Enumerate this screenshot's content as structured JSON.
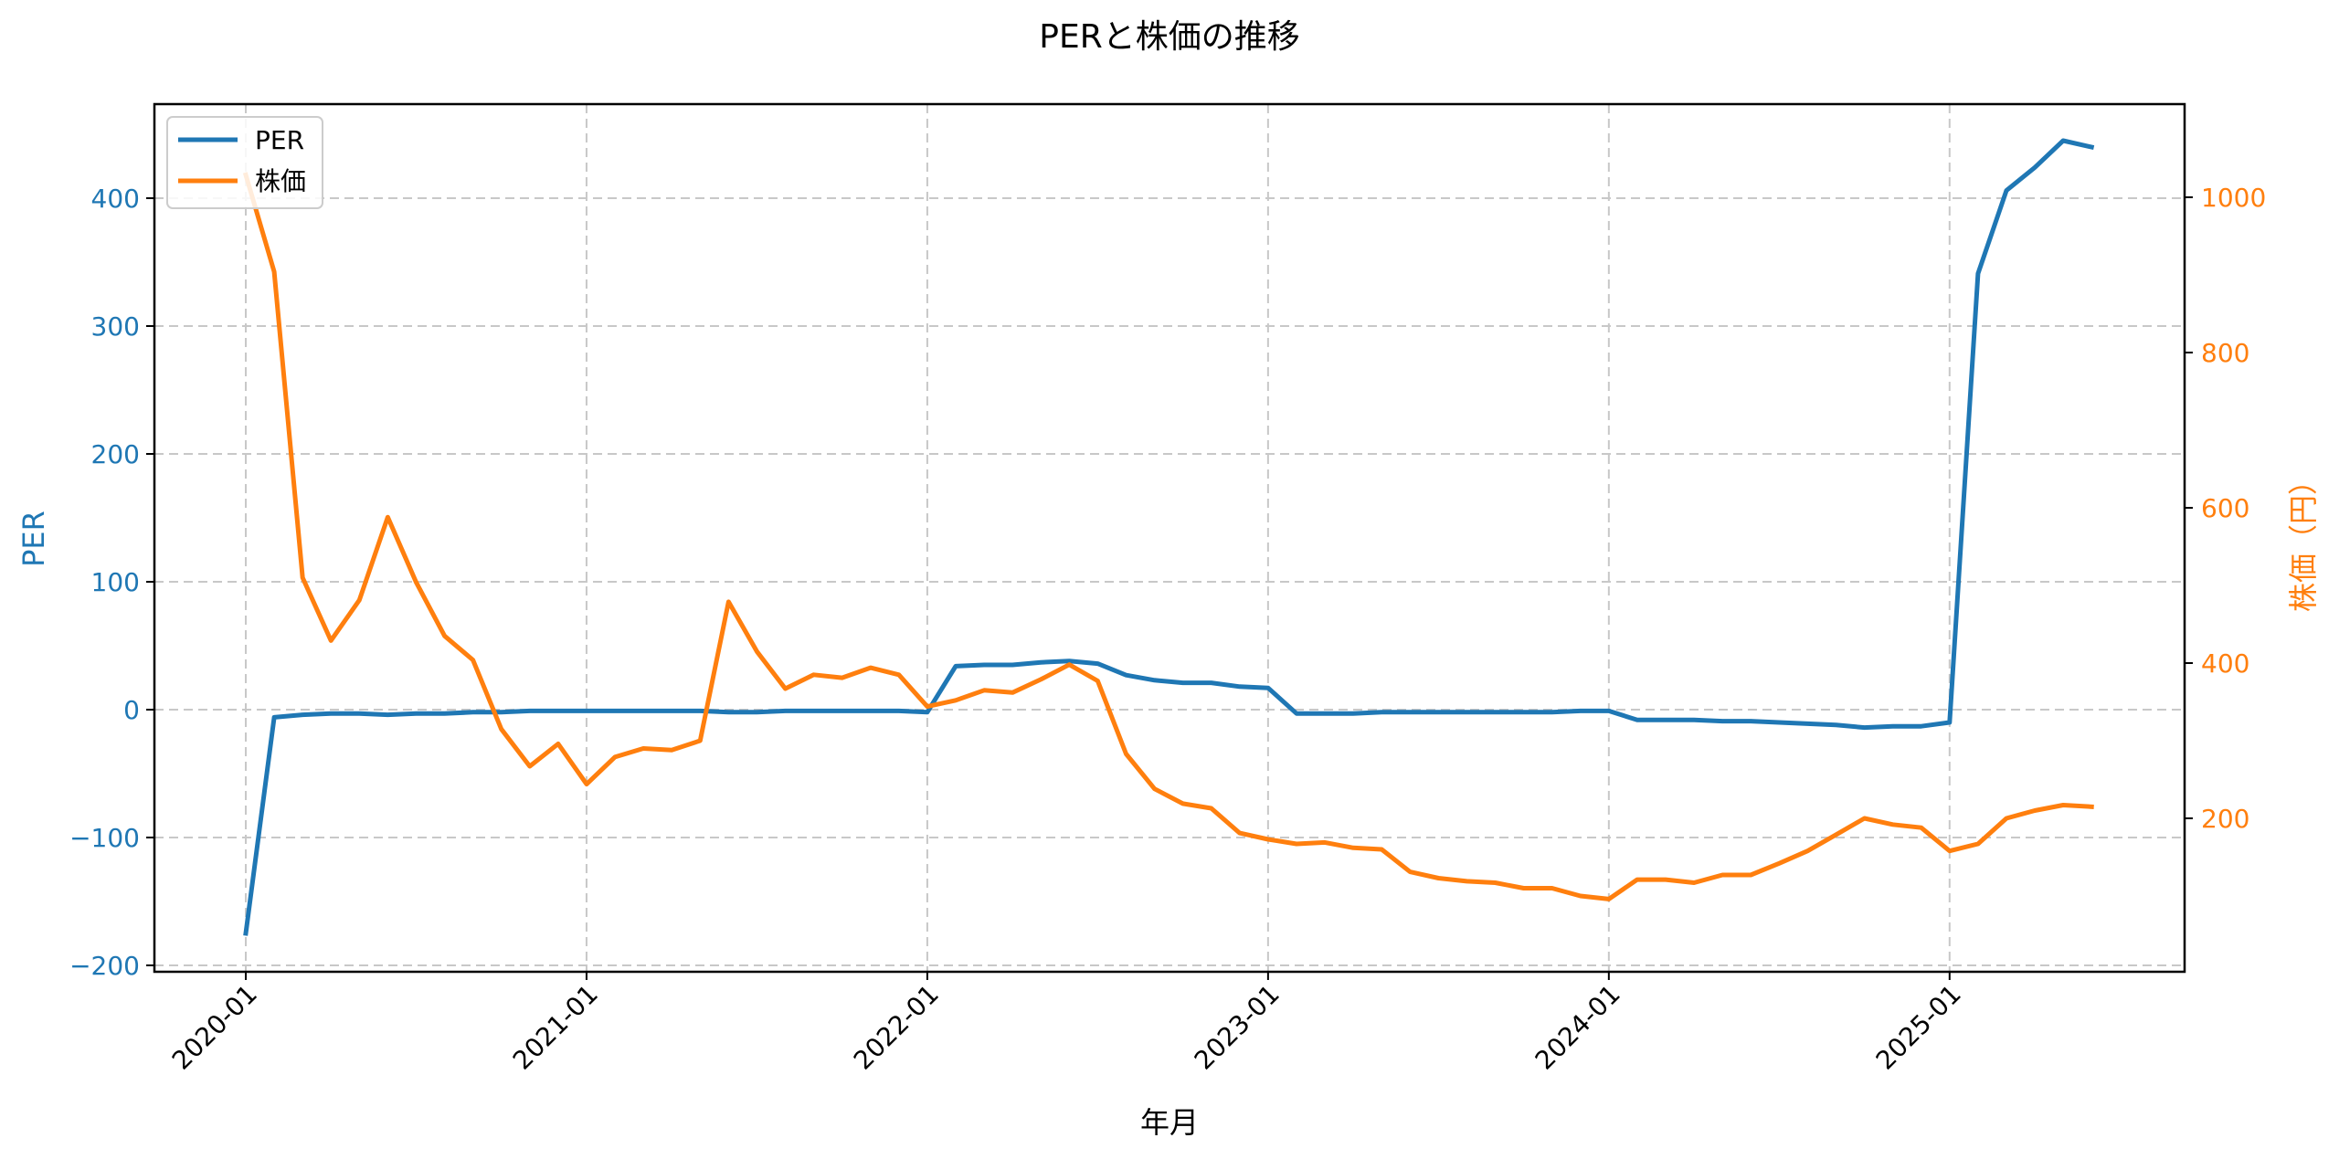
{
  "chart_data": {
    "type": "line",
    "title": "PERと株価の推移",
    "xlabel": "年月",
    "ylabel_left": "PER",
    "ylabel_right": "株価（円）",
    "ylim_left": [
      -205,
      475
    ],
    "ylim_right": [
      35,
      1153
    ],
    "yticks_left": [
      -200,
      -100,
      0,
      100,
      200,
      300,
      400
    ],
    "yticks_right": [
      200,
      400,
      600,
      800,
      1000
    ],
    "xtick_labels": [
      "2020-01",
      "2021-01",
      "2022-01",
      "2023-01",
      "2024-01",
      "2025-01"
    ],
    "grid": true,
    "legend_position": "upper left",
    "x": [
      "2020-01",
      "2020-02",
      "2020-03",
      "2020-04",
      "2020-05",
      "2020-06",
      "2020-07",
      "2020-08",
      "2020-09",
      "2020-10",
      "2020-11",
      "2020-12",
      "2021-01",
      "2021-02",
      "2021-03",
      "2021-04",
      "2021-05",
      "2021-06",
      "2021-07",
      "2021-08",
      "2021-09",
      "2021-10",
      "2021-11",
      "2021-12",
      "2022-01",
      "2022-02",
      "2022-03",
      "2022-04",
      "2022-05",
      "2022-06",
      "2022-07",
      "2022-08",
      "2022-09",
      "2022-10",
      "2022-11",
      "2022-12",
      "2023-01",
      "2023-02",
      "2023-03",
      "2023-04",
      "2023-05",
      "2023-06",
      "2023-07",
      "2023-08",
      "2023-09",
      "2023-10",
      "2023-11",
      "2023-12",
      "2024-01",
      "2024-02",
      "2024-03",
      "2024-04",
      "2024-05",
      "2024-06",
      "2024-07",
      "2024-08",
      "2024-09",
      "2024-10",
      "2024-11",
      "2024-12",
      "2025-01",
      "2025-02",
      "2025-03",
      "2025-04",
      "2025-05",
      "2025-06"
    ],
    "series": [
      {
        "name": "PER",
        "axis": "left",
        "color": "#1f77b4",
        "values": [
          -175,
          -6,
          -4,
          -3,
          -3,
          -4,
          -3,
          -3,
          -2,
          -2,
          -1,
          -1,
          -1,
          -1,
          -1,
          -1,
          -1,
          -2,
          -2,
          -1,
          -1,
          -1,
          -1,
          -1,
          -2,
          34,
          35,
          35,
          37,
          38,
          36,
          27,
          23,
          21,
          21,
          18,
          17,
          -3,
          -3,
          -3,
          -2,
          -2,
          -2,
          -2,
          -2,
          -2,
          -2,
          -1,
          -1,
          -8,
          -8,
          -8,
          -9,
          -9,
          -10,
          -11,
          -12,
          -14,
          -13,
          -13,
          -10,
          341,
          406,
          424,
          445,
          440
        ]
      },
      {
        "name": "株価",
        "axis": "right",
        "color": "#ff7f0e",
        "values": [
          1029,
          904,
          510,
          429,
          481,
          588,
          504,
          435,
          404,
          315,
          267,
          296,
          244,
          279,
          290,
          288,
          300,
          479,
          415,
          367,
          385,
          381,
          394,
          385,
          344,
          352,
          365,
          362,
          379,
          398,
          377,
          283,
          238,
          219,
          213,
          181,
          173,
          167,
          169,
          162,
          160,
          131,
          123,
          119,
          117,
          110,
          110,
          100,
          96,
          121,
          121,
          117,
          127,
          127,
          142,
          158,
          179,
          200,
          192,
          188,
          158,
          167,
          200,
          210,
          217,
          215
        ]
      }
    ]
  }
}
